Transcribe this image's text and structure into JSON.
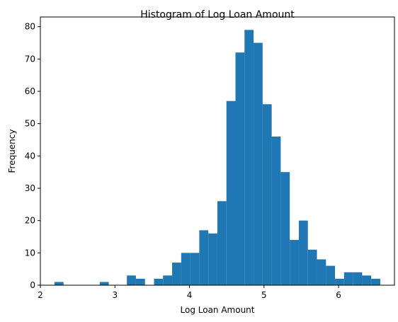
{
  "chart_data": {
    "type": "bar",
    "title": "Histogram of Log Loan Amount",
    "xlabel": "Log Loan Amount",
    "ylabel": "Frequency",
    "xlim": [
      2.0,
      6.75
    ],
    "ylim": [
      0,
      83
    ],
    "x_ticks": [
      2,
      3,
      4,
      5,
      6
    ],
    "y_ticks": [
      0,
      10,
      20,
      30,
      40,
      50,
      60,
      70,
      80
    ],
    "bin_start": 2.1893,
    "bin_width": 0.1214,
    "values": [
      1,
      0,
      0,
      0,
      0,
      1,
      0,
      0,
      3,
      2,
      0,
      2,
      3,
      7,
      10,
      10,
      17,
      16,
      26,
      57,
      72,
      79,
      75,
      56,
      46,
      35,
      14,
      20,
      11,
      8,
      6,
      2,
      4,
      4,
      3,
      2
    ],
    "bar_color": "#1f77b4",
    "grid": false
  }
}
